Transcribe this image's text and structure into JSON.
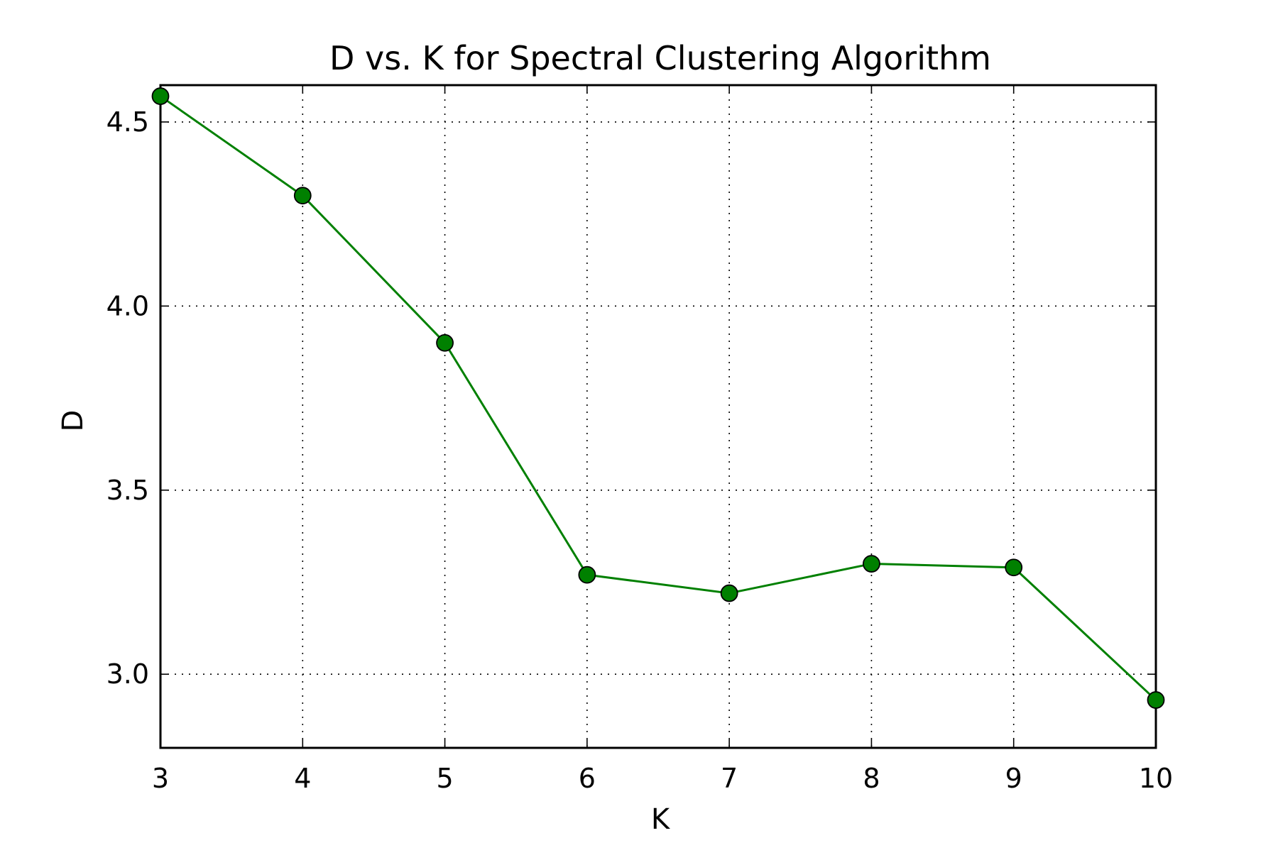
{
  "chart_data": {
    "type": "line",
    "title": "D vs. K for Spectral Clustering Algorithm",
    "xlabel": "K",
    "ylabel": "D",
    "x": [
      3,
      4,
      5,
      6,
      7,
      8,
      9,
      10
    ],
    "series": [
      {
        "values": [
          4.57,
          4.3,
          3.9,
          3.27,
          3.22,
          3.3,
          3.29,
          2.93
        ],
        "color": "#008000",
        "marker": "circle"
      }
    ],
    "xlim": [
      3,
      10
    ],
    "ylim": [
      2.8,
      4.6
    ],
    "xticks": [
      3,
      4,
      5,
      6,
      7,
      8,
      9,
      10
    ],
    "xtick_labels": [
      "3",
      "4",
      "5",
      "6",
      "7",
      "8",
      "9",
      "10"
    ],
    "yticks": [
      3.0,
      3.5,
      4.0,
      4.5
    ],
    "ytick_labels": [
      "3.0",
      "3.5",
      "4.0",
      "4.5"
    ],
    "grid": true,
    "legend": "none"
  }
}
